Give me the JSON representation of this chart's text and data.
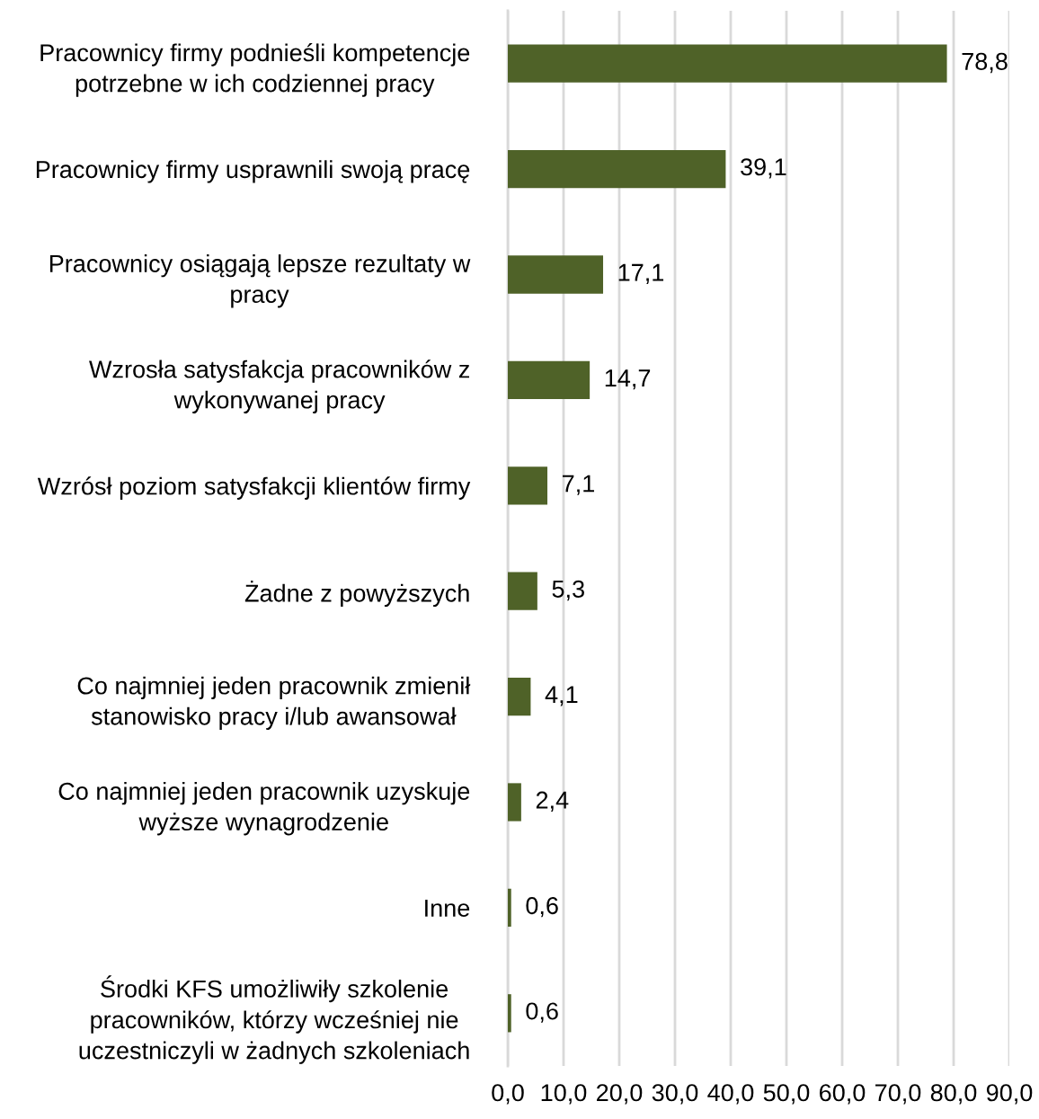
{
  "chart_data": {
    "type": "bar",
    "orientation": "horizontal",
    "categories": [
      "Pracownicy firmy podnieśli kompetencje\npotrzebne w ich codziennej pracy",
      "Pracownicy firmy usprawnili swoją pracę",
      "Pracownicy osiągają lepsze rezultaty w\npracy",
      "Wzrosła satysfakcja pracowników z\nwykonywanej pracy",
      "Wzrósł poziom satysfakcji klientów firmy",
      "Żadne z powyższych",
      "Co najmniej jeden pracownik zmienił\nstanowisko pracy i/lub awansował",
      "Co najmniej jeden pracownik uzyskuje\nwyższe wynagrodzenie",
      "Inne",
      "Środki KFS umożliwiły szkolenie\npracowników, którzy wcześniej nie\nuczestniczyli w żadnych szkoleniach"
    ],
    "values": [
      78.8,
      39.1,
      17.1,
      14.7,
      7.1,
      5.3,
      4.1,
      2.4,
      0.6,
      0.6
    ],
    "value_labels": [
      "78,8",
      "39,1",
      "17,1",
      "14,7",
      "7,1",
      "5,3",
      "4,1",
      "2,4",
      "0,6",
      "0,6"
    ],
    "color": "#4f6228",
    "xlim": [
      0,
      90
    ],
    "xticks": [
      {
        "value": 0,
        "label": "0,0"
      },
      {
        "value": 10,
        "label": "10,0"
      },
      {
        "value": 20,
        "label": "20,0"
      },
      {
        "value": 30,
        "label": "30,0"
      },
      {
        "value": 40,
        "label": "40,0"
      },
      {
        "value": 50,
        "label": "50,0"
      },
      {
        "value": 60,
        "label": "60,0"
      },
      {
        "value": 70,
        "label": "70,0"
      },
      {
        "value": 80,
        "label": "80,0"
      },
      {
        "value": 90,
        "label": "90,0"
      }
    ],
    "grid": "x",
    "legend": false
  }
}
